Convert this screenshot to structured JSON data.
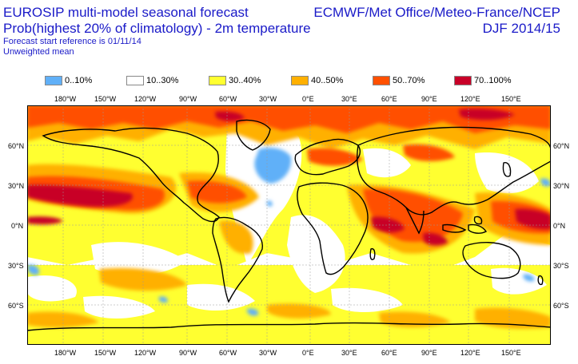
{
  "header": {
    "title_line1": "EUROSIP multi-model seasonal forecast",
    "title_line2": "Prob(highest 20% of climatology) - 2m temperature",
    "forecast_ref": "Forecast start reference is 01/11/14",
    "mean_type": "Unweighted mean",
    "centres": "ECMWF/Met Office/Meteo-France/NCEP",
    "season": "DJF 2014/15"
  },
  "legend": [
    {
      "label": "0..10%",
      "color": "#60b0f8"
    },
    {
      "label": "10..30%",
      "color": "#ffffff"
    },
    {
      "label": "30..40%",
      "color": "#ffff30"
    },
    {
      "label": "40..50%",
      "color": "#ffb000"
    },
    {
      "label": "50..70%",
      "color": "#ff5000"
    },
    {
      "label": "70..100%",
      "color": "#c80028"
    }
  ],
  "axes": {
    "lon_labels": [
      "180°W",
      "150°W",
      "120°W",
      "90°W",
      "60°W",
      "30°W",
      "0°E",
      "30°E",
      "60°E",
      "90°E",
      "120°E",
      "150°E"
    ],
    "lat_labels": [
      "60°N",
      "30°N",
      "0°N",
      "30°S",
      "60°S"
    ]
  }
}
